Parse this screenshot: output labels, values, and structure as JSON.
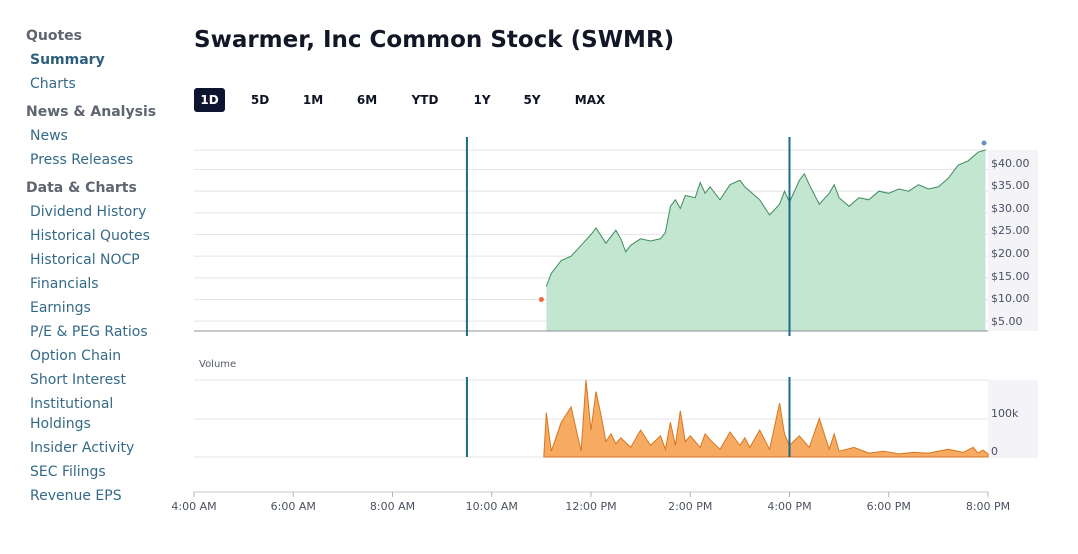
{
  "sidebar": {
    "groups": [
      {
        "heading": "Quotes",
        "items": [
          {
            "label": "Summary",
            "active": true
          },
          {
            "label": "Charts"
          }
        ]
      },
      {
        "heading": "News & Analysis",
        "items": [
          {
            "label": "News"
          },
          {
            "label": "Press Releases"
          }
        ]
      },
      {
        "heading": "Data & Charts",
        "items": [
          {
            "label": "Dividend History"
          },
          {
            "label": "Historical Quotes"
          },
          {
            "label": "Historical NOCP"
          },
          {
            "label": "Financials"
          },
          {
            "label": "Earnings"
          },
          {
            "label": "P/E & PEG Ratios"
          },
          {
            "label": "Option Chain"
          },
          {
            "label": "Short Interest"
          },
          {
            "label": "Institutional Holdings"
          },
          {
            "label": "Insider Activity"
          },
          {
            "label": "SEC Filings"
          },
          {
            "label": "Revenue EPS"
          }
        ]
      }
    ]
  },
  "title": "Swarmer, Inc Common Stock (SWMR)",
  "ranges": {
    "items": [
      "1D",
      "5D",
      "1M",
      "6M",
      "YTD",
      "1Y",
      "5Y",
      "MAX"
    ],
    "active": "1D"
  },
  "colors": {
    "price_fill": "#c2e6d0",
    "price_line": "#3f8c5e",
    "volume_fill": "#f7aa62",
    "volume_line": "#d7761e",
    "session_marker": "#1b6b8a",
    "open_dot": "#ef6b3d",
    "last_dot": "#6b8fc7"
  },
  "chart_data": {
    "type": "area",
    "x_axis": {
      "ticks": [
        "4:00 AM",
        "6:00 AM",
        "8:00 AM",
        "10:00 AM",
        "12:00 PM",
        "2:00 PM",
        "4:00 PM",
        "6:00 PM",
        "8:00 PM"
      ],
      "range_hours": [
        4,
        20
      ]
    },
    "session_markers": [
      9.5,
      16
    ],
    "price": {
      "ticks": [
        "$5.00",
        "$10.00",
        "$15.00",
        "$20.00",
        "$25.00",
        "$30.00",
        "$35.00",
        "$40.00"
      ],
      "ylim": [
        0,
        42
      ],
      "x": [
        11.1,
        11.2,
        11.4,
        11.6,
        11.8,
        12.0,
        12.1,
        12.3,
        12.5,
        12.6,
        12.7,
        12.8,
        13.0,
        13.2,
        13.4,
        13.5,
        13.6,
        13.7,
        13.8,
        13.9,
        14.1,
        14.2,
        14.3,
        14.4,
        14.6,
        14.8,
        15.0,
        15.1,
        15.3,
        15.4,
        15.6,
        15.8,
        15.9,
        16.0,
        16.2,
        16.3,
        16.4,
        16.6,
        16.8,
        16.9,
        17.0,
        17.2,
        17.4,
        17.6,
        17.8,
        18.0,
        18.2,
        18.4,
        18.6,
        18.8,
        19.0,
        19.2,
        19.4,
        19.6,
        19.8,
        19.95
      ],
      "y": [
        10.5,
        13.5,
        16.5,
        17.5,
        20.0,
        22.5,
        24.0,
        20.5,
        23.5,
        21.5,
        18.5,
        20.0,
        21.5,
        21.0,
        21.5,
        23.0,
        29.0,
        30.5,
        28.5,
        31.5,
        31.0,
        34.5,
        32.0,
        33.5,
        30.5,
        34.0,
        35.0,
        33.5,
        31.5,
        30.5,
        27.0,
        29.5,
        32.5,
        30.0,
        35.0,
        36.5,
        34.0,
        29.5,
        32.0,
        34.0,
        31.0,
        29.0,
        31.0,
        30.5,
        32.5,
        32.0,
        33.0,
        32.5,
        34.0,
        33.0,
        33.5,
        35.5,
        38.5,
        39.5,
        41.5,
        42.0
      ],
      "open_point": {
        "x": 11.0,
        "y": 7.5
      },
      "last_point": {
        "x": 19.92,
        "y": 42.5
      }
    },
    "volume": {
      "label": "Volume",
      "ticks": [
        "0",
        "100k"
      ],
      "ylim": [
        0,
        200000
      ],
      "x": [
        11.05,
        11.1,
        11.2,
        11.4,
        11.6,
        11.8,
        11.9,
        12.0,
        12.1,
        12.2,
        12.3,
        12.4,
        12.5,
        12.6,
        12.8,
        13.0,
        13.2,
        13.4,
        13.5,
        13.6,
        13.7,
        13.8,
        13.9,
        14.0,
        14.2,
        14.3,
        14.4,
        14.6,
        14.8,
        15.0,
        15.1,
        15.2,
        15.4,
        15.6,
        15.8,
        15.9,
        16.0,
        16.2,
        16.4,
        16.6,
        16.8,
        16.9,
        17.0,
        17.3,
        17.6,
        17.9,
        18.2,
        18.5,
        18.8,
        19.2,
        19.5,
        19.7,
        19.8,
        19.9,
        20.0
      ],
      "values": [
        5000,
        115000,
        15000,
        90000,
        130000,
        15000,
        200000,
        70000,
        170000,
        110000,
        40000,
        60000,
        35000,
        50000,
        25000,
        70000,
        30000,
        55000,
        20000,
        90000,
        30000,
        120000,
        40000,
        55000,
        25000,
        60000,
        45000,
        20000,
        65000,
        30000,
        50000,
        25000,
        70000,
        20000,
        140000,
        60000,
        30000,
        55000,
        25000,
        100000,
        20000,
        60000,
        15000,
        25000,
        10000,
        15000,
        8000,
        12000,
        10000,
        20000,
        12000,
        25000,
        10000,
        18000,
        8000
      ]
    }
  }
}
